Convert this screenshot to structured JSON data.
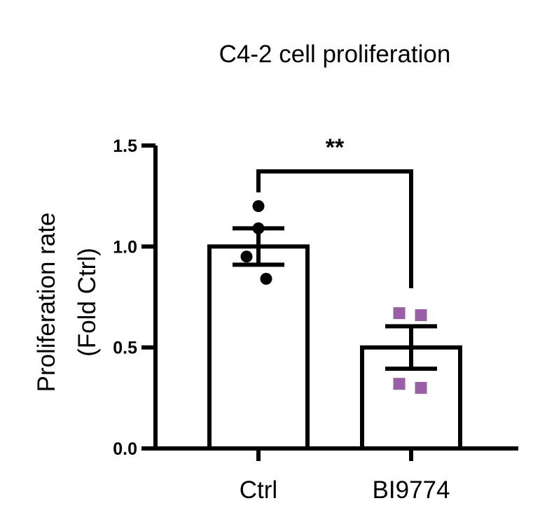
{
  "chart_data": {
    "type": "bar",
    "title": "C4-2 cell proliferation",
    "ylabel_lines": [
      "Proliferation rate",
      "(Fold Ctrl)"
    ],
    "ylim": [
      0,
      1.5
    ],
    "yticks": [
      "0.0",
      "0.5",
      "1.0",
      "1.5"
    ],
    "categories": [
      "Ctrl",
      "BI9774"
    ],
    "values": [
      1.0,
      0.5
    ],
    "error": [
      0.09,
      0.105
    ],
    "points": [
      [
        1.2,
        1.09,
        0.95,
        0.84
      ],
      [
        0.67,
        0.66,
        0.32,
        0.3
      ]
    ],
    "point_markers": [
      "circle",
      "square"
    ],
    "colors": {
      "bar_fill": "#ffffff",
      "bar_stroke": "#000000",
      "ctrl_points": "#000000",
      "treated_points": "#9b5fa8"
    },
    "significance": {
      "label": "**",
      "between": [
        "Ctrl",
        "BI9774"
      ]
    },
    "grid": false
  }
}
